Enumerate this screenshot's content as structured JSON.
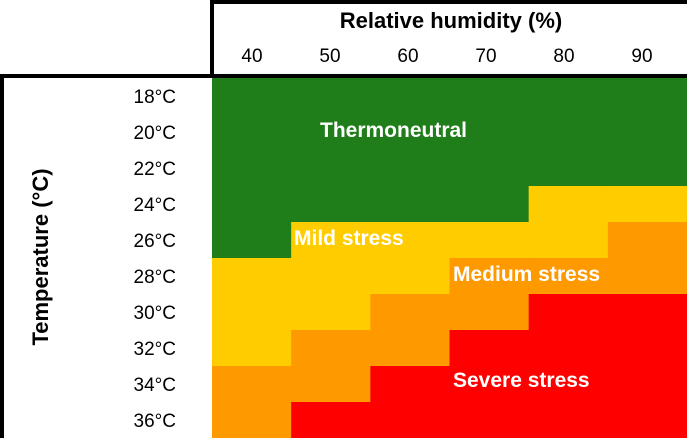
{
  "chart_data": {
    "type": "heatmap",
    "title": "",
    "xlabel": "Relative humidity (%)",
    "ylabel": "Temperature (°C)",
    "x_categories": [
      "40",
      "50",
      "60",
      "70",
      "80",
      "90"
    ],
    "y_categories": [
      "18°C",
      "20°C",
      "22°C",
      "24°C",
      "26°C",
      "28°C",
      "30°C",
      "32°C",
      "34°C",
      "36°C"
    ],
    "levels": [
      {
        "name": "Thermoneutral",
        "color": "#1f7d1a"
      },
      {
        "name": "Mild stress",
        "color": "#ffcc00"
      },
      {
        "name": "Medium stress",
        "color": "#ff9900"
      },
      {
        "name": "Severe stress",
        "color": "#ff0000"
      }
    ],
    "matrix": [
      [
        0,
        0,
        0,
        0,
        0,
        0
      ],
      [
        0,
        0,
        0,
        0,
        0,
        0
      ],
      [
        0,
        0,
        0,
        0,
        0,
        0
      ],
      [
        0,
        0,
        0,
        0,
        1,
        1
      ],
      [
        0,
        1,
        1,
        1,
        1,
        2
      ],
      [
        1,
        1,
        1,
        2,
        2,
        2
      ],
      [
        1,
        1,
        2,
        2,
        3,
        3
      ],
      [
        1,
        2,
        2,
        3,
        3,
        3
      ],
      [
        2,
        2,
        3,
        3,
        3,
        3
      ],
      [
        2,
        3,
        3,
        3,
        3,
        3
      ]
    ],
    "annotations": [
      {
        "text": "Thermoneutral",
        "level": 0
      },
      {
        "text": "Mild stress",
        "level": 1
      },
      {
        "text": "Medium stress",
        "level": 2
      },
      {
        "text": "Severe stress",
        "level": 3
      }
    ]
  }
}
